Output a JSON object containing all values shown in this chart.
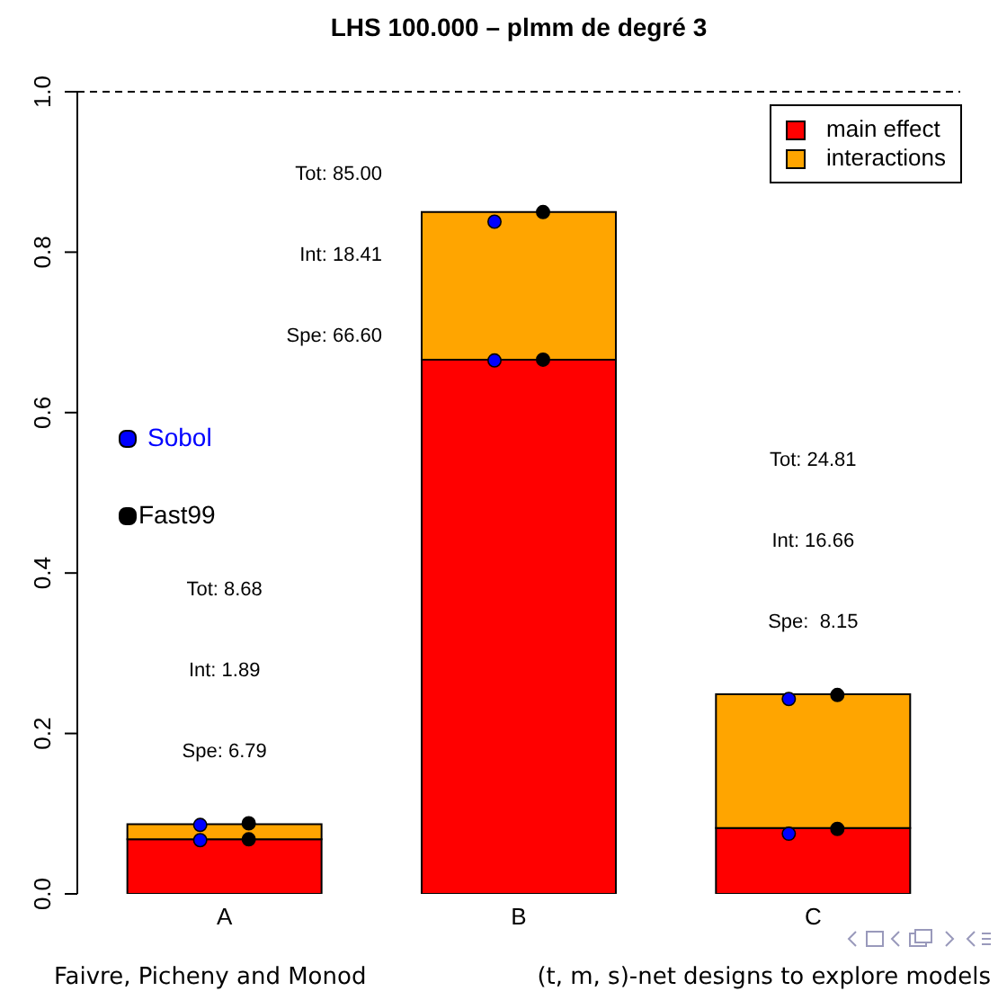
{
  "chart_data": {
    "type": "bar",
    "title": "LHS 100.000 – plmm de degré 3",
    "categories": [
      "A",
      "B",
      "C"
    ],
    "stacked": true,
    "series": [
      {
        "name": "main effect",
        "color": "#ff0000",
        "values": [
          0.068,
          0.666,
          0.082
        ]
      },
      {
        "name": "interactions",
        "color": "#ffa500",
        "values": [
          0.019,
          0.184,
          0.167
        ]
      },
      {
        "name": "Sobol",
        "type": "scatter",
        "color": "#0000ff",
        "x": [
          "A",
          "A",
          "B",
          "B",
          "C",
          "C"
        ],
        "values": [
          0.067,
          0.086,
          0.665,
          0.838,
          0.075,
          0.243
        ]
      },
      {
        "name": "Fast99",
        "type": "scatter",
        "color": "#000000",
        "x": [
          "A",
          "A",
          "B",
          "B",
          "C",
          "C"
        ],
        "values": [
          0.068,
          0.088,
          0.666,
          0.85,
          0.081,
          0.248
        ]
      }
    ],
    "ylim": [
      0,
      1
    ],
    "yticks": [
      {
        "value": 0,
        "label": "0.0"
      },
      0.2,
      0.4,
      0.6,
      0.8,
      {
        "value": 1,
        "label": "1.0"
      }
    ],
    "legend": "top right",
    "marker": "circle",
    "ref_lines": [
      {
        "axis": "y",
        "value": 1,
        "color": "#000000",
        "line_style": "dashed"
      }
    ],
    "annotations": [
      "Tot: 8.68",
      "Int: 1.89",
      "Spe: 6.79",
      "Tot: 85.00",
      "Int: 18.41",
      "Spe: 66.60",
      "Tot: 24.81",
      "Int: 16.66",
      "Spe:  8.15",
      "Faivre, Picheny and Monod",
      "(t, m, s)-net designs to explore models"
    ]
  }
}
